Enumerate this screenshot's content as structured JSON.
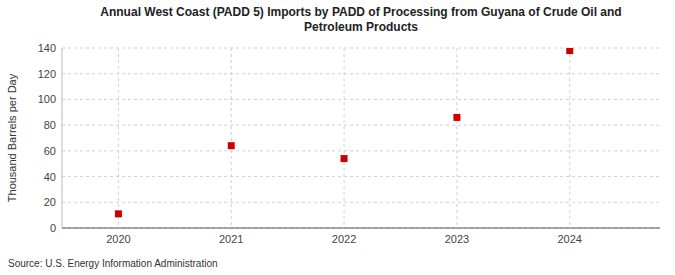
{
  "chart_data": {
    "type": "scatter",
    "title": "Annual West Coast (PADD 5) Imports by PADD of Processing from Guyana of Crude Oil and\nPetroleum Products",
    "ylabel": "Thousand Barrels per Day",
    "source": "Source: U.S. Energy Information Administration",
    "x": [
      2020,
      2021,
      2022,
      2023,
      2024
    ],
    "values": [
      11,
      64,
      54,
      86,
      138
    ],
    "color": "#cc0000",
    "marker": "square",
    "xlim": [
      2019.5,
      2024.8
    ],
    "xticks": [
      2020,
      2021,
      2022,
      2023,
      2024
    ],
    "ylim": [
      0,
      140
    ],
    "yticks": [
      0,
      20,
      40,
      60,
      80,
      100,
      120,
      140
    ],
    "grid": true
  }
}
